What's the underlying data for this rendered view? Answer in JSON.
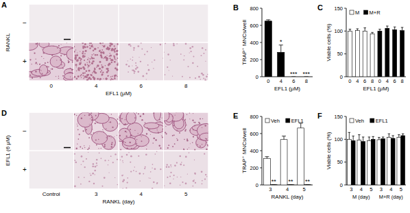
{
  "chart_data": [
    {
      "type": "bar",
      "title": "B",
      "y_label": "TRAP⁺ MNCs/well",
      "x_label": "EFL1 (μM)",
      "categories": [
        "0",
        "4",
        "6",
        "8"
      ],
      "values": [
        650,
        285,
        0,
        0
      ],
      "errors": [
        15,
        85,
        0,
        0
      ],
      "significance": [
        null,
        "*",
        "***",
        "***"
      ],
      "color": "#000000",
      "ylim": [
        0,
        800
      ],
      "yticks": [
        0,
        200,
        400,
        600,
        800
      ]
    },
    {
      "type": "bar",
      "title": "C",
      "y_label": "Viable cells (%)",
      "x_label": "EFL1 (μM)",
      "categories": [
        "0",
        "4",
        "6",
        "8",
        "0",
        "4",
        "6",
        "8"
      ],
      "series": [
        {
          "name": "M",
          "color": "#ffffff",
          "values": [
            100,
            101,
            100,
            94,
            null,
            null,
            null,
            null
          ],
          "errors": [
            4,
            4,
            7,
            3,
            null,
            null,
            null,
            null
          ]
        },
        {
          "name": "M+R",
          "color": "#000000",
          "values": [
            null,
            null,
            null,
            null,
            100,
            106,
            103,
            101
          ],
          "errors": [
            null,
            null,
            null,
            null,
            4,
            5,
            6,
            7
          ]
        }
      ],
      "legend": "top",
      "ylim": [
        0,
        150
      ],
      "yticks": [
        0,
        50,
        100,
        150
      ]
    },
    {
      "type": "bar",
      "title": "E",
      "y_label": "TRAP⁺ MNCs/well",
      "x_label": "RANKL (day)",
      "categories": [
        "3",
        "4",
        "5"
      ],
      "series": [
        {
          "name": "Veh",
          "color": "#ffffff",
          "values": [
            310,
            530,
            665
          ],
          "errors": [
            20,
            40,
            55
          ]
        },
        {
          "name": "EFL1",
          "color": "#000000",
          "values": [
            2,
            2,
            2
          ],
          "errors": [
            1,
            1,
            1
          ],
          "significance": [
            "**",
            "**",
            "**"
          ]
        }
      ],
      "legend": "top",
      "ylim": [
        0,
        800
      ],
      "yticks": [
        0,
        200,
        400,
        600,
        800
      ]
    },
    {
      "type": "bar",
      "title": "F",
      "y_label": "Viable cells (%)",
      "categories": [
        "3",
        "4",
        "5",
        "3",
        "4",
        "5"
      ],
      "x_groups": [
        {
          "label": "M (day)",
          "count": 3
        },
        {
          "label": "M+R (day)",
          "count": 3
        }
      ],
      "series": [
        {
          "name": "Veh",
          "color": "#ffffff",
          "values": [
            100,
            98,
            97,
            99,
            104,
            104
          ],
          "errors": [
            15,
            12,
            8,
            5,
            8,
            6
          ]
        },
        {
          "name": "EFL1",
          "color": "#000000",
          "values": [
            97,
            95,
            100,
            101,
            102,
            108
          ],
          "errors": [
            10,
            10,
            6,
            4,
            6,
            4
          ]
        }
      ],
      "legend": "top",
      "ylim": [
        0,
        150
      ],
      "yticks": [
        0,
        50,
        100,
        150
      ]
    }
  ],
  "micrographs": [
    {
      "title": "A",
      "row_label": "RANKL",
      "rows": [
        "−",
        "+"
      ],
      "columns": [
        "0",
        "4",
        "6",
        "8"
      ],
      "x_label": "EFL1 (μM)"
    },
    {
      "title": "D",
      "row_label": "EFL1 (6 μM)",
      "rows": [
        "−",
        "+"
      ],
      "columns": [
        "Control",
        "3",
        "4",
        "5"
      ],
      "x_label": "RANKL (day)"
    }
  ]
}
